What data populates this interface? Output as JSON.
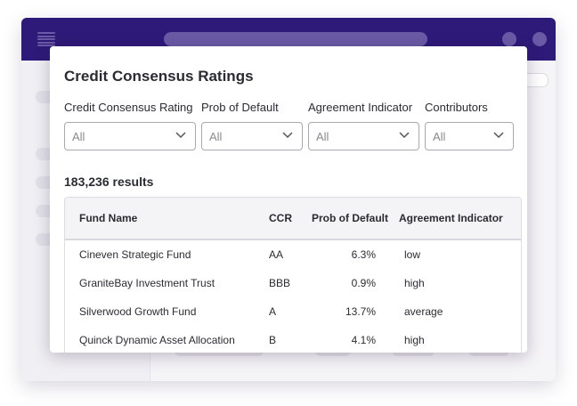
{
  "modal": {
    "title": "Credit Consensus Ratings",
    "filters": [
      {
        "label": "Credit Consensus Rating",
        "value": "All"
      },
      {
        "label": "Prob of Default",
        "value": "All"
      },
      {
        "label": "Agreement Indicator",
        "value": "All"
      },
      {
        "label": "Contributors",
        "value": "All"
      }
    ],
    "results_count": "183,236 results",
    "table": {
      "columns": [
        "Fund Name",
        "CCR",
        "Prob of Default",
        "Agreement Indicator"
      ],
      "rows": [
        [
          "Cineven Strategic Fund",
          "AA",
          "6.3%",
          "low"
        ],
        [
          "GraniteBay Investment Trust",
          "BBB",
          "0.9%",
          "high"
        ],
        [
          "Silverwood Growth Fund",
          "A",
          "13.7%",
          "average"
        ],
        [
          "Quinck Dynamic Asset Allocation",
          "B",
          "4.1%",
          "high"
        ]
      ]
    }
  },
  "colors": {
    "topbar": "#2e1a78",
    "topbar_placeholder": "#6a5aa6"
  },
  "icons": [
    "menu-icon",
    "chevron-down-icon"
  ]
}
